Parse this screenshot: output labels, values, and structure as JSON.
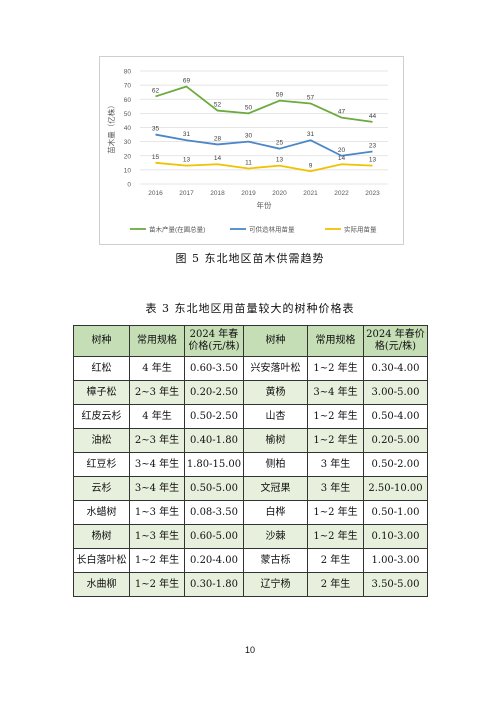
{
  "chart_data": {
    "type": "line",
    "title": "",
    "xlabel": "年份",
    "ylabel": "苗木量（亿株）",
    "ylim": [
      0,
      80
    ],
    "yticks": [
      0,
      10,
      20,
      30,
      40,
      50,
      60,
      70,
      80
    ],
    "grid": true,
    "legend_position": "bottom",
    "categories": [
      "2016",
      "2017",
      "2018",
      "2019",
      "2020",
      "2021",
      "2022",
      "2023"
    ],
    "series": [
      {
        "name": "苗木产量(在圃总量)",
        "color": "#6aab3c",
        "values": [
          62,
          69,
          52,
          50,
          59,
          57,
          47,
          44
        ]
      },
      {
        "name": "可供造林用苗量",
        "color": "#4a86c8",
        "values": [
          35,
          31,
          28,
          30,
          25,
          31,
          20,
          23
        ]
      },
      {
        "name": "实际用苗量",
        "color": "#f2c100",
        "values": [
          15,
          13,
          14,
          11,
          13,
          9,
          14,
          13
        ]
      }
    ]
  },
  "figure_caption": "图 5  东北地区苗木供需趋势",
  "table_caption": "表 3  东北地区用苗量较大的树种价格表",
  "table": {
    "headers": [
      "树种",
      "常用规格",
      "2024 年春价格(元/株)",
      "树种",
      "常用规格",
      "2024 年春价格(元/株)"
    ],
    "rows": [
      [
        "红松",
        "4 年生",
        "0.60-3.50",
        "兴安落叶松",
        "1~2 年生",
        "0.30-4.00"
      ],
      [
        "樟子松",
        "2~3 年生",
        "0.20-2.50",
        "黄杨",
        "3~4 年生",
        "3.00-5.00"
      ],
      [
        "红皮云杉",
        "4 年生",
        "0.50-2.50",
        "山杏",
        "1~2 年生",
        "0.50-4.00"
      ],
      [
        "油松",
        "2~3 年生",
        "0.40-1.80",
        "榆树",
        "1~2 年生",
        "0.20-5.00"
      ],
      [
        "红豆杉",
        "3~4 年生",
        "1.80-15.00",
        "侧柏",
        "3 年生",
        "0.50-2.00"
      ],
      [
        "云杉",
        "3~4 年生",
        "0.50-5.00",
        "文冠果",
        "3 年生",
        "2.50-10.00"
      ],
      [
        "水蜡树",
        "1~3 年生",
        "0.08-3.50",
        "白桦",
        "1~2 年生",
        "0.50-1.00"
      ],
      [
        "杨树",
        "1~3 年生",
        "0.60-5.00",
        "沙棘",
        "1~2 年生",
        "0.10-3.00"
      ],
      [
        "长白落叶松",
        "1~2 年生",
        "0.20-4.00",
        "蒙古栎",
        "2 年生",
        "1.00-3.00"
      ],
      [
        "水曲柳",
        "1~2 年生",
        "0.30-1.80",
        "辽宁杨",
        "2 年生",
        "3.50-5.00"
      ]
    ]
  },
  "page_number": "10"
}
